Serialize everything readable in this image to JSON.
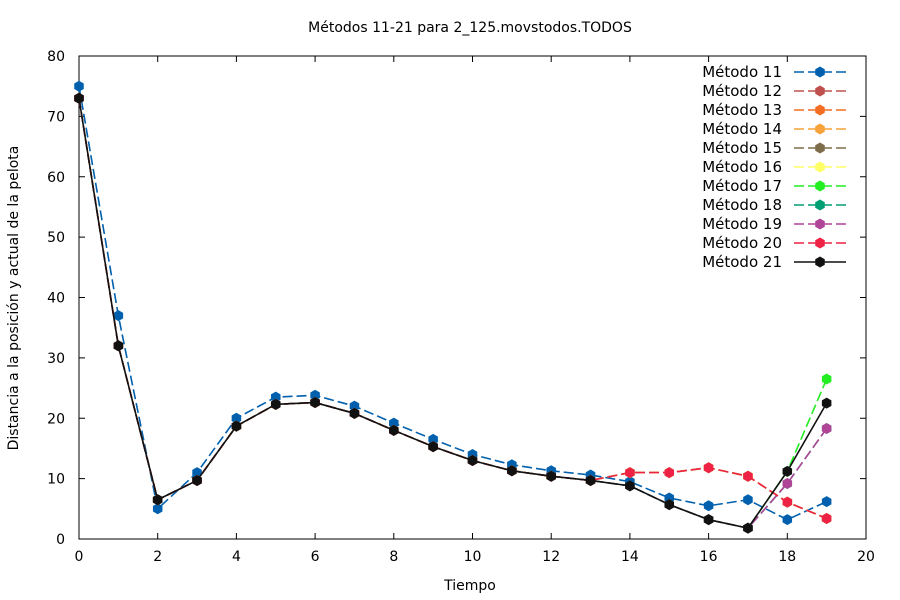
{
  "chart_data": {
    "type": "line",
    "title": "Métodos 11-21 para 2_125.movstodos.TODOS",
    "xlabel": "Tiempo",
    "ylabel": "Distancia a la posición y actual de la pelota",
    "xlim": [
      0,
      20
    ],
    "ylim": [
      0,
      80
    ],
    "xticks": [
      0,
      2,
      4,
      6,
      8,
      10,
      12,
      14,
      16,
      18,
      20
    ],
    "yticks": [
      0,
      10,
      20,
      30,
      40,
      50,
      60,
      70,
      80
    ],
    "grid": false,
    "legend_position": "top-right",
    "series": [
      {
        "name": "Método 11",
        "color": "#0060ad",
        "dash": "dashed",
        "points": [
          [
            0,
            75
          ],
          [
            1,
            37
          ],
          [
            2,
            5
          ],
          [
            3,
            11
          ],
          [
            4,
            20
          ],
          [
            5,
            23.5
          ],
          [
            6,
            23.8
          ],
          [
            7,
            22
          ],
          [
            8,
            19.2
          ],
          [
            9,
            16.5
          ],
          [
            10,
            14
          ],
          [
            11,
            12.3
          ],
          [
            12,
            11.3
          ],
          [
            13,
            10.6
          ],
          [
            14,
            9.5
          ],
          [
            15,
            6.8
          ],
          [
            16,
            5.5
          ],
          [
            17,
            6.5
          ],
          [
            18,
            3.2
          ],
          [
            19,
            6.2
          ]
        ]
      },
      {
        "name": "Método 12",
        "color": "#c0504d",
        "dash": "dashed",
        "points": [
          [
            0,
            73
          ],
          [
            1,
            32
          ],
          [
            2,
            6.5
          ],
          [
            3,
            9.7
          ],
          [
            4,
            18.7
          ],
          [
            5,
            22.3
          ],
          [
            6,
            22.6
          ],
          [
            7,
            20.8
          ],
          [
            8,
            18
          ],
          [
            9,
            15.3
          ],
          [
            10,
            13
          ],
          [
            11,
            11.3
          ],
          [
            12,
            10.4
          ],
          [
            13,
            9.7
          ],
          [
            14,
            11
          ],
          [
            15,
            11
          ],
          [
            16,
            11.8
          ],
          [
            17,
            10.4
          ],
          [
            18,
            6.1
          ],
          [
            19,
            3.4
          ]
        ]
      },
      {
        "name": "Método 13",
        "color": "#f36e22",
        "dash": "dashed",
        "points": [
          [
            0,
            73
          ],
          [
            1,
            32
          ],
          [
            2,
            6.5
          ],
          [
            3,
            9.7
          ],
          [
            4,
            18.7
          ],
          [
            5,
            22.3
          ],
          [
            6,
            22.6
          ],
          [
            7,
            20.8
          ],
          [
            8,
            18
          ],
          [
            9,
            15.3
          ],
          [
            10,
            13
          ],
          [
            11,
            11.3
          ],
          [
            12,
            10.4
          ],
          [
            13,
            9.7
          ],
          [
            14,
            11
          ],
          [
            15,
            11
          ],
          [
            16,
            11.8
          ],
          [
            17,
            10.4
          ],
          [
            18,
            6.1
          ],
          [
            19,
            3.4
          ]
        ]
      },
      {
        "name": "Método 14",
        "color": "#f7a23a",
        "dash": "dashed",
        "points": [
          [
            0,
            73
          ],
          [
            1,
            32
          ],
          [
            2,
            6.5
          ],
          [
            3,
            9.7
          ],
          [
            4,
            18.7
          ],
          [
            5,
            22.3
          ],
          [
            6,
            22.6
          ],
          [
            7,
            20.8
          ],
          [
            8,
            18
          ],
          [
            9,
            15.3
          ],
          [
            10,
            13
          ],
          [
            11,
            11.3
          ],
          [
            12,
            10.4
          ],
          [
            13,
            9.7
          ],
          [
            14,
            11
          ],
          [
            15,
            11
          ],
          [
            16,
            11.8
          ],
          [
            17,
            10.4
          ],
          [
            18,
            6.1
          ],
          [
            19,
            3.4
          ]
        ]
      },
      {
        "name": "Método 15",
        "color": "#7d6d4a",
        "dash": "dashed",
        "points": [
          [
            0,
            73
          ],
          [
            1,
            32
          ],
          [
            2,
            6.5
          ],
          [
            3,
            9.7
          ],
          [
            4,
            18.7
          ],
          [
            5,
            22.3
          ],
          [
            6,
            22.6
          ],
          [
            7,
            20.8
          ],
          [
            8,
            18
          ],
          [
            9,
            15.3
          ],
          [
            10,
            13
          ],
          [
            11,
            11.3
          ],
          [
            12,
            10.4
          ],
          [
            13,
            9.7
          ],
          [
            14,
            11
          ],
          [
            15,
            11
          ],
          [
            16,
            11.8
          ],
          [
            17,
            10.4
          ],
          [
            18,
            6.1
          ],
          [
            19,
            3.4
          ]
        ]
      },
      {
        "name": "Método 16",
        "color": "#ffff66",
        "dash": "dashed",
        "points": [
          [
            0,
            73
          ],
          [
            1,
            32
          ],
          [
            2,
            6.5
          ],
          [
            3,
            9.7
          ],
          [
            4,
            18.7
          ],
          [
            5,
            22.3
          ],
          [
            6,
            22.6
          ],
          [
            7,
            20.8
          ],
          [
            8,
            18
          ],
          [
            9,
            15.3
          ],
          [
            10,
            13
          ],
          [
            11,
            11.3
          ],
          [
            12,
            10.4
          ],
          [
            13,
            9.7
          ],
          [
            14,
            11
          ],
          [
            15,
            11
          ],
          [
            16,
            11.8
          ],
          [
            17,
            10.4
          ],
          [
            18,
            6.1
          ],
          [
            19,
            3.4
          ]
        ]
      },
      {
        "name": "Método 17",
        "color": "#22ee22",
        "dash": "dashed",
        "points": [
          [
            0,
            73
          ],
          [
            1,
            32
          ],
          [
            2,
            6.5
          ],
          [
            3,
            9.7
          ],
          [
            4,
            18.7
          ],
          [
            5,
            22.3
          ],
          [
            6,
            22.6
          ],
          [
            7,
            20.8
          ],
          [
            8,
            18
          ],
          [
            9,
            15.3
          ],
          [
            10,
            13
          ],
          [
            11,
            11.3
          ],
          [
            12,
            10.4
          ],
          [
            13,
            9.7
          ],
          [
            14,
            8.8
          ],
          [
            15,
            5.7
          ],
          [
            16,
            3.2
          ],
          [
            17,
            1.8
          ],
          [
            18,
            11.2
          ],
          [
            19,
            26.5
          ]
        ]
      },
      {
        "name": "Método 18",
        "color": "#009e73",
        "dash": "dashed",
        "points": [
          [
            0,
            73
          ],
          [
            1,
            32
          ],
          [
            2,
            6.5
          ],
          [
            3,
            9.7
          ],
          [
            4,
            18.7
          ],
          [
            5,
            22.3
          ],
          [
            6,
            22.6
          ],
          [
            7,
            20.8
          ],
          [
            8,
            18
          ],
          [
            9,
            15.3
          ],
          [
            10,
            13
          ],
          [
            11,
            11.3
          ],
          [
            12,
            10.4
          ],
          [
            13,
            9.7
          ],
          [
            14,
            8.8
          ],
          [
            15,
            5.7
          ],
          [
            16,
            3.2
          ],
          [
            17,
            1.8
          ],
          [
            18,
            9.2
          ],
          [
            19,
            18.3
          ]
        ]
      },
      {
        "name": "Método 19",
        "color": "#b04497",
        "dash": "dashed",
        "points": [
          [
            0,
            73
          ],
          [
            1,
            32
          ],
          [
            2,
            6.5
          ],
          [
            3,
            9.7
          ],
          [
            4,
            18.7
          ],
          [
            5,
            22.3
          ],
          [
            6,
            22.6
          ],
          [
            7,
            20.8
          ],
          [
            8,
            18
          ],
          [
            9,
            15.3
          ],
          [
            10,
            13
          ],
          [
            11,
            11.3
          ],
          [
            12,
            10.4
          ],
          [
            13,
            9.7
          ],
          [
            14,
            8.8
          ],
          [
            15,
            5.7
          ],
          [
            16,
            3.2
          ],
          [
            17,
            1.8
          ],
          [
            18,
            9.2
          ],
          [
            19,
            18.3
          ]
        ]
      },
      {
        "name": "Método 20",
        "color": "#ee2244",
        "dash": "dashed",
        "points": [
          [
            0,
            73
          ],
          [
            1,
            32
          ],
          [
            2,
            6.5
          ],
          [
            3,
            9.7
          ],
          [
            4,
            18.7
          ],
          [
            5,
            22.3
          ],
          [
            6,
            22.6
          ],
          [
            7,
            20.8
          ],
          [
            8,
            18
          ],
          [
            9,
            15.3
          ],
          [
            10,
            13
          ],
          [
            11,
            11.3
          ],
          [
            12,
            10.4
          ],
          [
            13,
            9.7
          ],
          [
            14,
            11
          ],
          [
            15,
            11
          ],
          [
            16,
            11.8
          ],
          [
            17,
            10.4
          ],
          [
            18,
            6.1
          ],
          [
            19,
            3.4
          ]
        ]
      },
      {
        "name": "Método 21",
        "color": "#111111",
        "dash": "solid",
        "points": [
          [
            0,
            73
          ],
          [
            1,
            32
          ],
          [
            2,
            6.5
          ],
          [
            3,
            9.7
          ],
          [
            4,
            18.7
          ],
          [
            5,
            22.3
          ],
          [
            6,
            22.6
          ],
          [
            7,
            20.8
          ],
          [
            8,
            18
          ],
          [
            9,
            15.3
          ],
          [
            10,
            13
          ],
          [
            11,
            11.3
          ],
          [
            12,
            10.4
          ],
          [
            13,
            9.7
          ],
          [
            14,
            8.8
          ],
          [
            15,
            5.7
          ],
          [
            16,
            3.2
          ],
          [
            17,
            1.8
          ],
          [
            18,
            11.2
          ],
          [
            19,
            22.5
          ]
        ]
      }
    ]
  }
}
